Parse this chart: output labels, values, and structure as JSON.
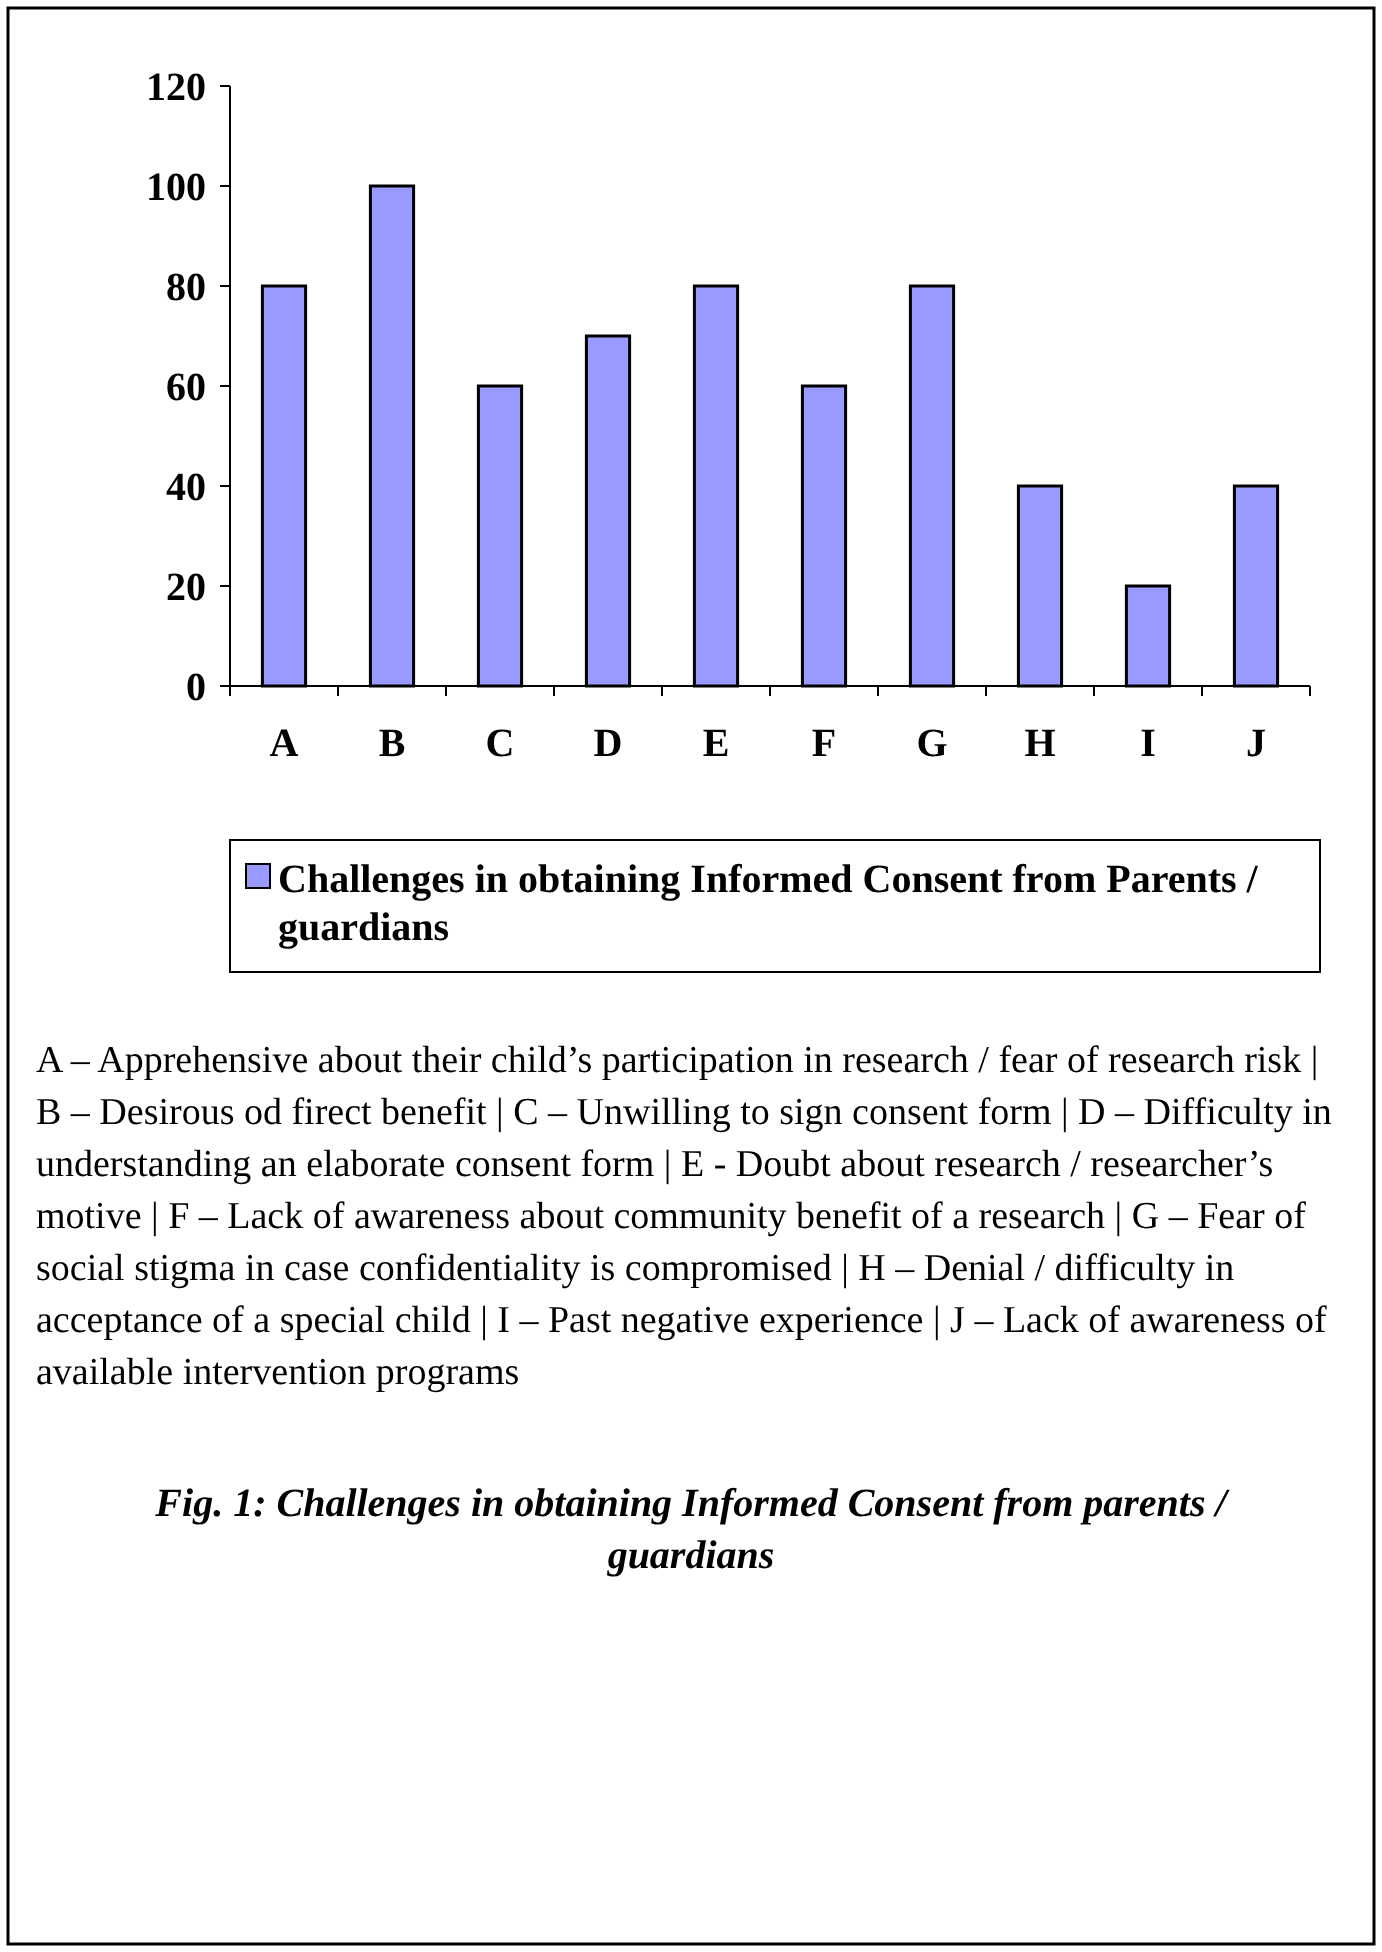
{
  "chart_data": {
    "type": "bar",
    "categories": [
      "A",
      "B",
      "C",
      "D",
      "E",
      "F",
      "G",
      "H",
      "I",
      "J"
    ],
    "series": [
      {
        "name": "Challenges in obtaining Informed Consent from Parents /  guardians",
        "color": "#9999ff",
        "values": [
          80,
          100,
          60,
          70,
          80,
          60,
          80,
          40,
          20,
          40
        ]
      }
    ],
    "ylim": [
      0,
      120
    ],
    "yticks": [
      0,
      20,
      40,
      60,
      80,
      100,
      120
    ],
    "grid": false,
    "legend": "bottom",
    "annotations": [
      "A – Apprehensive about their child’s participation in research / fear of research risk | B – Desirous od firect benefit | C – Unwilling to sign consent form | D – Difficulty in understanding an elaborate consent form | E - Doubt about research / researcher’s motive | F – Lack of awareness about community benefit of a research | G – Fear of  social stigma in case confidentiality is compromised | H – Denial / difficulty in acceptance of a special child | I – Past negative experience | J – Lack of awareness of available intervention programs",
      "Fig. 1: Challenges in obtaining Informed Consent from parents / guardians"
    ]
  }
}
